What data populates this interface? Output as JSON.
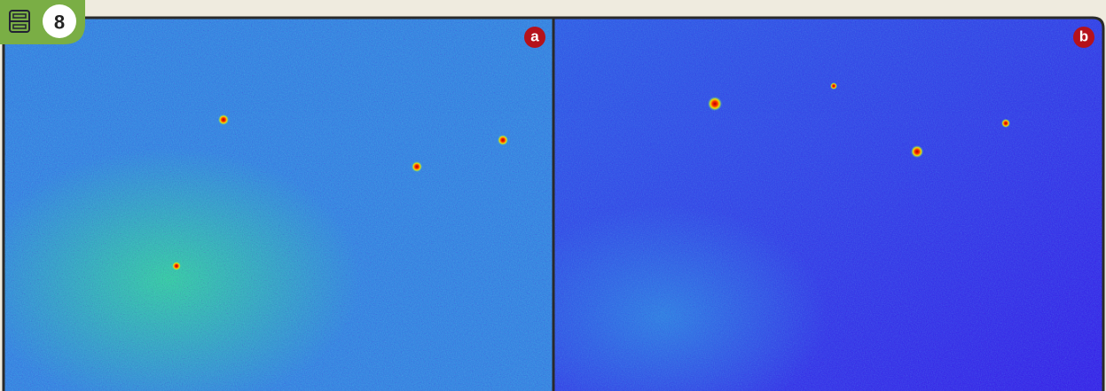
{
  "figure": {
    "number": "8",
    "panels": [
      {
        "label": "a"
      },
      {
        "label": "b"
      }
    ]
  }
}
